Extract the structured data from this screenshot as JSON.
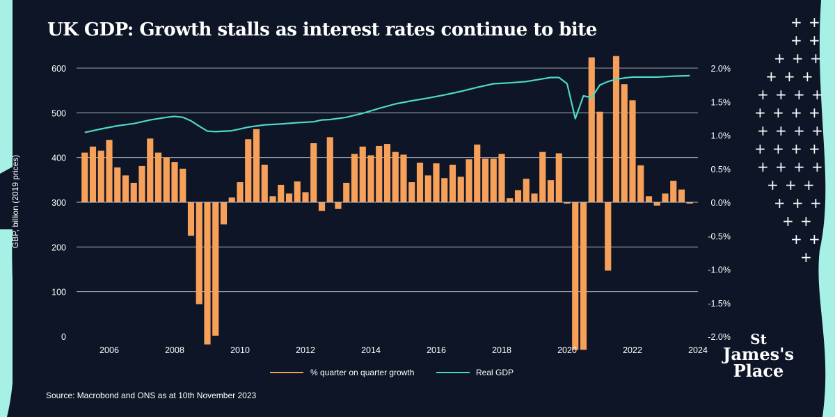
{
  "title": "UK GDP: Growth stalls as interest rates continue to bite",
  "source": "Source: Macrobond and ONS as at 10th November 2023",
  "brand": {
    "line1": "St",
    "line2": "James's",
    "line3": "Place"
  },
  "colors": {
    "bg": "#0d1526",
    "bar": "#f7a05a",
    "line": "#4fd8c7",
    "accent": "#a7f0e6",
    "grid": "#c9ced6"
  },
  "chart_data": {
    "type": "bar+line",
    "title": "UK GDP: Growth stalls as interest rates continue to bite",
    "ylabel": "GBP, billion (2019 prices)",
    "y_left": {
      "min": 0,
      "max": 600,
      "ticks": [
        "0",
        "100",
        "200",
        "300",
        "400",
        "500",
        "600"
      ]
    },
    "y_right": {
      "min": -2.0,
      "max": 2.0,
      "ticks": [
        "-2.0%",
        "-1.5%",
        "-1.0%",
        "-0.5%",
        "0.0%",
        "0.5%",
        "1.0%",
        "1.5%",
        "2.0%"
      ]
    },
    "x": {
      "min": 2005,
      "max": 2024,
      "ticks": [
        "2006",
        "2008",
        "2010",
        "2012",
        "2014",
        "2016",
        "2018",
        "2020",
        "2022",
        "2024"
      ]
    },
    "quarters_start": 2005.25,
    "series": [
      {
        "name": "% quarter on quarter growth",
        "type": "bar",
        "axis": "right",
        "values": [
          0.74,
          0.83,
          0.77,
          0.93,
          0.52,
          0.4,
          0.29,
          0.54,
          0.95,
          0.74,
          0.67,
          0.6,
          0.5,
          -0.5,
          -1.52,
          -2.12,
          -1.99,
          -0.33,
          0.07,
          0.3,
          0.94,
          1.09,
          0.56,
          0.09,
          0.26,
          0.13,
          0.31,
          0.15,
          0.88,
          -0.13,
          0.97,
          -0.1,
          0.29,
          0.72,
          0.83,
          0.7,
          0.84,
          0.87,
          0.75,
          0.71,
          0.3,
          0.59,
          0.4,
          0.58,
          0.36,
          0.56,
          0.38,
          0.64,
          0.86,
          0.65,
          0.65,
          0.72,
          0.06,
          0.18,
          0.35,
          0.13,
          0.75,
          0.33,
          0.73,
          -0.02,
          -2.2,
          -2.2,
          2.16,
          1.35,
          -1.02,
          2.18,
          1.76,
          1.52,
          0.55,
          0.09,
          -0.05,
          0.13,
          0.32,
          0.19,
          -0.02
        ]
      },
      {
        "name": "Real GDP",
        "type": "line",
        "axis": "left",
        "x": [
          2005.25,
          2005.75,
          2006.25,
          2006.75,
          2007.25,
          2007.75,
          2008.0,
          2008.25,
          2008.5,
          2008.75,
          2009.0,
          2009.25,
          2009.75,
          2010.25,
          2010.75,
          2011.25,
          2011.75,
          2012.25,
          2012.5,
          2012.75,
          2013.25,
          2013.75,
          2014.25,
          2014.75,
          2015.25,
          2015.75,
          2016.25,
          2016.75,
          2017.25,
          2017.75,
          2018.25,
          2018.75,
          2019.25,
          2019.5,
          2019.75,
          2020.0,
          2020.25,
          2020.5,
          2020.75,
          2021.0,
          2021.25,
          2021.5,
          2021.75,
          2022.0,
          2022.25,
          2022.75,
          2023.25,
          2023.75
        ],
        "values": [
          456,
          464,
          471,
          476,
          484,
          490,
          492,
          490,
          482,
          470,
          459,
          458,
          460,
          468,
          473,
          475,
          478,
          480,
          484,
          485,
          490,
          499,
          510,
          520,
          527,
          533,
          540,
          548,
          557,
          565,
          567,
          570,
          576,
          579,
          579,
          565,
          487,
          538,
          534,
          562,
          570,
          575,
          578,
          580,
          580,
          580,
          582,
          583
        ]
      }
    ],
    "legend": [
      "% quarter on quarter growth",
      "Real GDP"
    ],
    "legend_position": "bottom-center"
  }
}
